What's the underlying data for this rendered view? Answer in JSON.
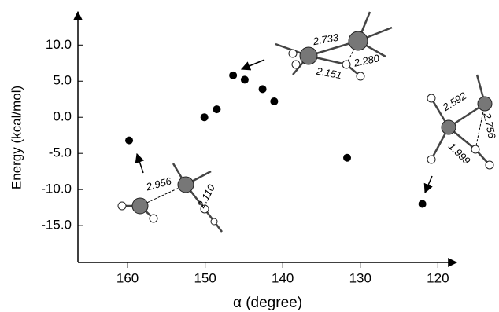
{
  "chart_data": {
    "type": "scatter",
    "x_label": "α (degree)",
    "y_label": "Energy (kcal/mol)",
    "x": [
      159.8,
      150.1,
      148.5,
      146.4,
      144.9,
      142.6,
      141.1,
      131.7,
      122.0
    ],
    "values": [
      -3.2,
      0.0,
      1.1,
      5.8,
      5.2,
      3.9,
      2.2,
      -5.6,
      -12.0
    ],
    "color": "#000000",
    "xlim": [
      166.4,
      117.6
    ],
    "xticks": [
      160,
      150,
      140,
      130,
      120
    ],
    "ylim": [
      -20.1,
      14.6
    ],
    "yticks": [
      {
        "value": 10,
        "label": "10.0"
      },
      {
        "value": 5,
        "label": "5.0"
      },
      {
        "value": 0,
        "label": "0.0"
      },
      {
        "value": -5,
        "label": "-5.0"
      },
      {
        "value": -10,
        "label": "-10.0"
      },
      {
        "value": -15,
        "label": "-15.0"
      }
    ],
    "annotations": [
      "2.956",
      "2.110",
      "2.733",
      "2.280",
      "2.151",
      "2.592",
      "2.756",
      "1.999"
    ]
  }
}
